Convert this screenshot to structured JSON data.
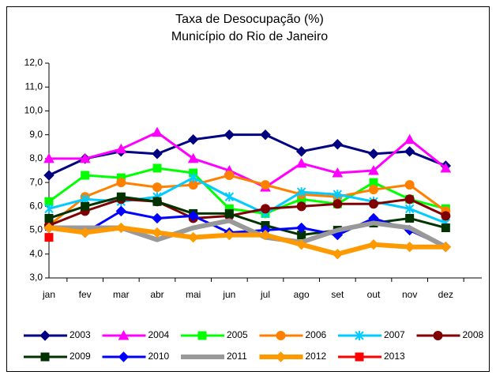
{
  "chart_data": {
    "type": "line",
    "title": "Taxa de Desocupação (%)",
    "subtitle": "Município do Rio de Janeiro",
    "categories": [
      "jan",
      "fev",
      "mar",
      "abr",
      "mai",
      "jun",
      "jul",
      "ago",
      "set",
      "out",
      "nov",
      "dez"
    ],
    "ylim": [
      3,
      12
    ],
    "yticks": [
      {
        "value": 3,
        "label": "3,0"
      },
      {
        "value": 4,
        "label": "4,0"
      },
      {
        "value": 5,
        "label": "5,0"
      },
      {
        "value": 6,
        "label": "6,0"
      },
      {
        "value": 7,
        "label": "7,0"
      },
      {
        "value": 8,
        "label": "8,0"
      },
      {
        "value": 9,
        "label": "9,0"
      },
      {
        "value": 10,
        "label": "10,0"
      },
      {
        "value": 11,
        "label": "11,0"
      },
      {
        "value": 12,
        "label": "12,0"
      }
    ],
    "legend": "bottom",
    "series": [
      {
        "name": "2003",
        "color": "#000080",
        "marker": "diamond",
        "values": [
          7.3,
          8.0,
          8.3,
          8.2,
          8.8,
          9.0,
          9.0,
          8.3,
          8.6,
          8.2,
          8.3,
          7.7
        ]
      },
      {
        "name": "2004",
        "color": "#ff00ff",
        "marker": "triangle",
        "values": [
          8.0,
          8.0,
          8.4,
          9.1,
          8.0,
          7.5,
          6.8,
          7.8,
          7.4,
          7.5,
          8.8,
          7.6
        ]
      },
      {
        "name": "2005",
        "color": "#00ff00",
        "marker": "square",
        "values": [
          6.2,
          7.3,
          7.2,
          7.6,
          7.4,
          5.9,
          5.7,
          6.3,
          6.1,
          7.0,
          6.3,
          5.9
        ]
      },
      {
        "name": "2006",
        "color": "#ff8000",
        "marker": "circle",
        "values": [
          5.2,
          6.4,
          7.0,
          6.8,
          6.9,
          7.3,
          6.9,
          6.5,
          6.4,
          6.7,
          6.9,
          5.8
        ]
      },
      {
        "name": "2007",
        "color": "#00ccff",
        "marker": "asterisk",
        "values": [
          5.9,
          6.3,
          6.2,
          6.4,
          7.2,
          6.4,
          5.7,
          6.6,
          6.5,
          6.2,
          5.9,
          5.3
        ]
      },
      {
        "name": "2008",
        "color": "#800000",
        "marker": "circle",
        "values": [
          5.2,
          5.8,
          6.3,
          6.2,
          5.5,
          5.6,
          5.9,
          6.0,
          6.1,
          6.1,
          6.3,
          5.6
        ]
      },
      {
        "name": "2009",
        "color": "#003300",
        "marker": "square",
        "values": [
          5.5,
          6.0,
          6.4,
          6.2,
          5.7,
          5.7,
          5.2,
          4.8,
          5.0,
          5.3,
          5.5,
          5.1
        ]
      },
      {
        "name": "2010",
        "color": "#0000ff",
        "marker": "diamond",
        "values": [
          5.1,
          4.9,
          5.8,
          5.5,
          5.6,
          4.9,
          5.0,
          5.1,
          4.8,
          5.5,
          5.0,
          4.3
        ]
      },
      {
        "name": "2011",
        "color": "#999999",
        "marker": "none",
        "values": [
          5.1,
          5.1,
          5.1,
          4.6,
          5.1,
          5.4,
          4.7,
          4.5,
          5.0,
          5.3,
          5.1,
          4.3
        ]
      },
      {
        "name": "2012",
        "color": "#ff9900",
        "marker": "diamond",
        "values": [
          5.1,
          4.9,
          5.1,
          4.9,
          4.7,
          4.8,
          4.8,
          4.4,
          4.0,
          4.4,
          4.3,
          4.3
        ]
      },
      {
        "name": "2013",
        "color": "#ff0000",
        "marker": "square",
        "values": [
          4.7,
          null,
          null,
          null,
          null,
          null,
          null,
          null,
          null,
          null,
          null,
          null
        ]
      }
    ]
  }
}
